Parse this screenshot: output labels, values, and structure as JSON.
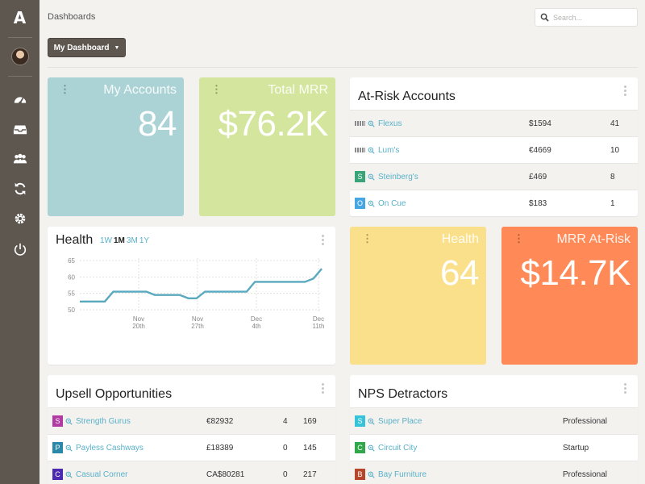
{
  "app": {
    "logo": "A"
  },
  "header": {
    "breadcrumb": "Dashboards",
    "search_placeholder": "Search..."
  },
  "dashboard_selector": {
    "label": "My Dashboard"
  },
  "tiles": {
    "my_accounts": {
      "label": "My Accounts",
      "value": "84",
      "color": "#abd3d5"
    },
    "total_mrr": {
      "label": "Total MRR",
      "value": "$76.2K",
      "color": "#d4e59d"
    },
    "health": {
      "label": "Health",
      "value": "64",
      "color": "#fbe08c"
    },
    "mrr_at_risk": {
      "label": "MRR At-Risk",
      "value": "$14.7K",
      "color": "#ff8a57"
    }
  },
  "at_risk": {
    "title": "At-Risk Accounts",
    "rows": [
      {
        "badge": "",
        "badge_color": "",
        "name": "Flexus",
        "mrr": "$1594",
        "count": "41"
      },
      {
        "badge": "",
        "badge_color": "",
        "name": "Lum's",
        "mrr": "€4669",
        "count": "10"
      },
      {
        "badge": "S",
        "badge_color": "#3aa479",
        "name": "Steinberg's",
        "mrr": "£469",
        "count": "8"
      },
      {
        "badge": "O",
        "badge_color": "#46a5e3",
        "name": "On Cue",
        "mrr": "$183",
        "count": "1"
      }
    ]
  },
  "health_chart": {
    "title": "Health",
    "ranges": [
      "1W",
      "1M",
      "3M",
      "1Y"
    ],
    "active_range": "1M",
    "chart_data": {
      "type": "line",
      "ylim": [
        50,
        65
      ],
      "yticks": [
        "65",
        "60",
        "55",
        "50"
      ],
      "xticks": [
        {
          "line1": "Nov",
          "line2": "20th"
        },
        {
          "line1": "Nov",
          "line2": "27th"
        },
        {
          "line1": "Dec",
          "line2": "4th"
        },
        {
          "line1": "Dec",
          "line2": "11th"
        }
      ],
      "color": "#5aa9be",
      "series": [
        {
          "values": [
            52.5,
            52.5,
            52.5,
            52.5,
            55.5,
            55.5,
            55.5,
            55.5,
            55.5,
            54.5,
            54.5,
            54.5,
            54.5,
            53.5,
            53.5,
            55.5,
            55.5,
            55.5,
            55.5,
            55.5,
            55.5,
            58.5,
            58.5,
            58.5,
            58.5,
            58.5,
            58.5,
            58.5,
            59.5,
            62.5
          ]
        }
      ]
    }
  },
  "upsell": {
    "title": "Upsell Opportunities",
    "rows": [
      {
        "badge": "S",
        "badge_color": "#b23ba3",
        "name": "Strength Gurus",
        "value": "€82932",
        "a": "4",
        "b": "169"
      },
      {
        "badge": "P",
        "badge_color": "#2a89a8",
        "name": "Payless Cashways",
        "value": "£18389",
        "a": "0",
        "b": "145"
      },
      {
        "badge": "C",
        "badge_color": "#4b2ab0",
        "name": "Casual Corner",
        "value": "CA$80281",
        "a": "0",
        "b": "217"
      }
    ]
  },
  "nps": {
    "title": "NPS Detractors",
    "rows": [
      {
        "badge": "S",
        "badge_color": "#36c2d8",
        "name": "Super Place",
        "plan": "Professional"
      },
      {
        "badge": "C",
        "badge_color": "#2fa74a",
        "name": "Circuit City",
        "plan": "Startup"
      },
      {
        "badge": "B",
        "badge_color": "#b5462a",
        "name": "Bay Furniture",
        "plan": "Professional"
      }
    ]
  }
}
